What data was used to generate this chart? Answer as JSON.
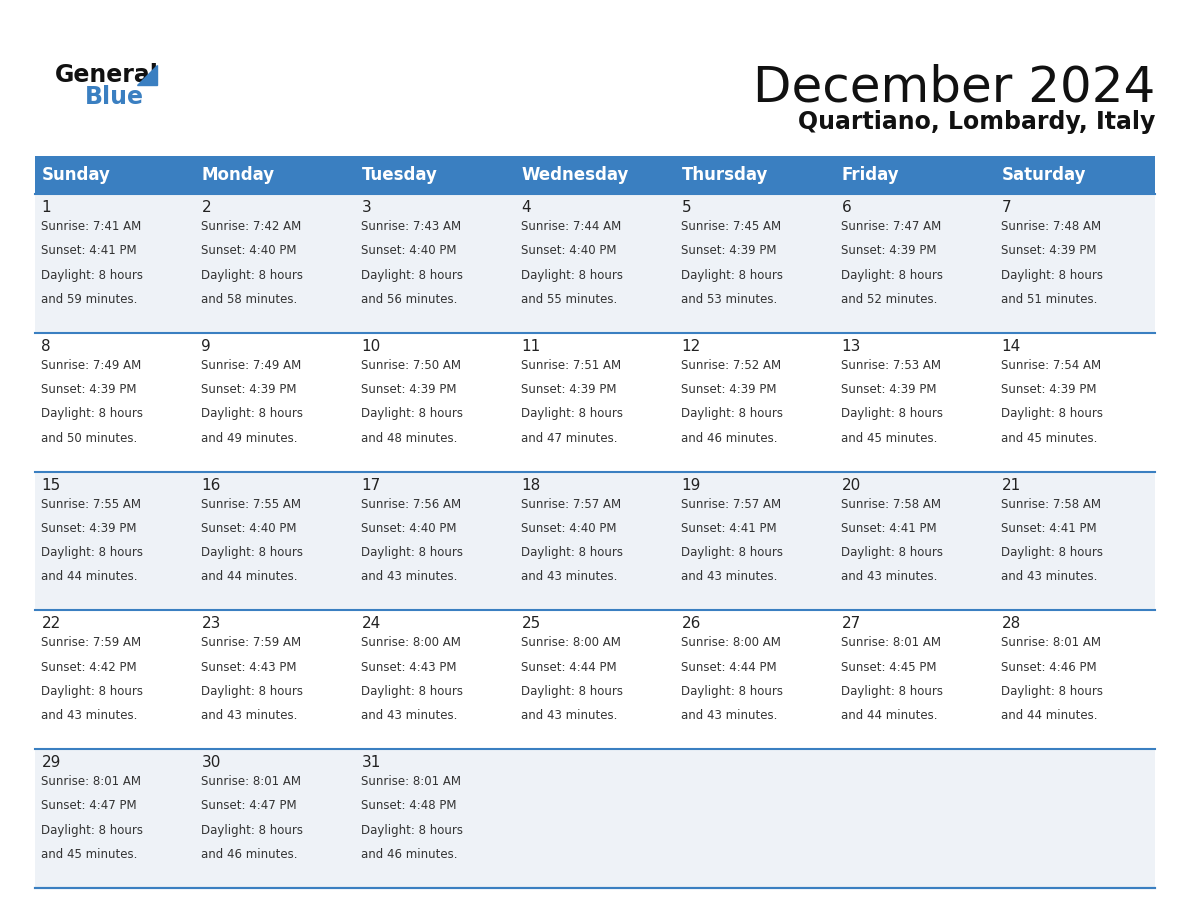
{
  "title": "December 2024",
  "subtitle": "Quartiano, Lombardy, Italy",
  "days_of_week": [
    "Sunday",
    "Monday",
    "Tuesday",
    "Wednesday",
    "Thursday",
    "Friday",
    "Saturday"
  ],
  "header_bg_color": "#3a7fc1",
  "header_text_color": "#ffffff",
  "row_bg_even": "#eef2f7",
  "row_bg_odd": "#ffffff",
  "divider_color": "#3a7fc1",
  "cell_text_color": "#333333",
  "day_num_color": "#222222",
  "title_color": "#111111",
  "subtitle_color": "#111111",
  "logo_text_color": "#111111",
  "logo_blue_color": "#3a7fc1",
  "calendar_data": [
    [
      {
        "day": 1,
        "sunrise": "7:41 AM",
        "sunset": "4:41 PM",
        "daylight_hours": 8,
        "daylight_minutes": 59
      },
      {
        "day": 2,
        "sunrise": "7:42 AM",
        "sunset": "4:40 PM",
        "daylight_hours": 8,
        "daylight_minutes": 58
      },
      {
        "day": 3,
        "sunrise": "7:43 AM",
        "sunset": "4:40 PM",
        "daylight_hours": 8,
        "daylight_minutes": 56
      },
      {
        "day": 4,
        "sunrise": "7:44 AM",
        "sunset": "4:40 PM",
        "daylight_hours": 8,
        "daylight_minutes": 55
      },
      {
        "day": 5,
        "sunrise": "7:45 AM",
        "sunset": "4:39 PM",
        "daylight_hours": 8,
        "daylight_minutes": 53
      },
      {
        "day": 6,
        "sunrise": "7:47 AM",
        "sunset": "4:39 PM",
        "daylight_hours": 8,
        "daylight_minutes": 52
      },
      {
        "day": 7,
        "sunrise": "7:48 AM",
        "sunset": "4:39 PM",
        "daylight_hours": 8,
        "daylight_minutes": 51
      }
    ],
    [
      {
        "day": 8,
        "sunrise": "7:49 AM",
        "sunset": "4:39 PM",
        "daylight_hours": 8,
        "daylight_minutes": 50
      },
      {
        "day": 9,
        "sunrise": "7:49 AM",
        "sunset": "4:39 PM",
        "daylight_hours": 8,
        "daylight_minutes": 49
      },
      {
        "day": 10,
        "sunrise": "7:50 AM",
        "sunset": "4:39 PM",
        "daylight_hours": 8,
        "daylight_minutes": 48
      },
      {
        "day": 11,
        "sunrise": "7:51 AM",
        "sunset": "4:39 PM",
        "daylight_hours": 8,
        "daylight_minutes": 47
      },
      {
        "day": 12,
        "sunrise": "7:52 AM",
        "sunset": "4:39 PM",
        "daylight_hours": 8,
        "daylight_minutes": 46
      },
      {
        "day": 13,
        "sunrise": "7:53 AM",
        "sunset": "4:39 PM",
        "daylight_hours": 8,
        "daylight_minutes": 45
      },
      {
        "day": 14,
        "sunrise": "7:54 AM",
        "sunset": "4:39 PM",
        "daylight_hours": 8,
        "daylight_minutes": 45
      }
    ],
    [
      {
        "day": 15,
        "sunrise": "7:55 AM",
        "sunset": "4:39 PM",
        "daylight_hours": 8,
        "daylight_minutes": 44
      },
      {
        "day": 16,
        "sunrise": "7:55 AM",
        "sunset": "4:40 PM",
        "daylight_hours": 8,
        "daylight_minutes": 44
      },
      {
        "day": 17,
        "sunrise": "7:56 AM",
        "sunset": "4:40 PM",
        "daylight_hours": 8,
        "daylight_minutes": 43
      },
      {
        "day": 18,
        "sunrise": "7:57 AM",
        "sunset": "4:40 PM",
        "daylight_hours": 8,
        "daylight_minutes": 43
      },
      {
        "day": 19,
        "sunrise": "7:57 AM",
        "sunset": "4:41 PM",
        "daylight_hours": 8,
        "daylight_minutes": 43
      },
      {
        "day": 20,
        "sunrise": "7:58 AM",
        "sunset": "4:41 PM",
        "daylight_hours": 8,
        "daylight_minutes": 43
      },
      {
        "day": 21,
        "sunrise": "7:58 AM",
        "sunset": "4:41 PM",
        "daylight_hours": 8,
        "daylight_minutes": 43
      }
    ],
    [
      {
        "day": 22,
        "sunrise": "7:59 AM",
        "sunset": "4:42 PM",
        "daylight_hours": 8,
        "daylight_minutes": 43
      },
      {
        "day": 23,
        "sunrise": "7:59 AM",
        "sunset": "4:43 PM",
        "daylight_hours": 8,
        "daylight_minutes": 43
      },
      {
        "day": 24,
        "sunrise": "8:00 AM",
        "sunset": "4:43 PM",
        "daylight_hours": 8,
        "daylight_minutes": 43
      },
      {
        "day": 25,
        "sunrise": "8:00 AM",
        "sunset": "4:44 PM",
        "daylight_hours": 8,
        "daylight_minutes": 43
      },
      {
        "day": 26,
        "sunrise": "8:00 AM",
        "sunset": "4:44 PM",
        "daylight_hours": 8,
        "daylight_minutes": 43
      },
      {
        "day": 27,
        "sunrise": "8:01 AM",
        "sunset": "4:45 PM",
        "daylight_hours": 8,
        "daylight_minutes": 44
      },
      {
        "day": 28,
        "sunrise": "8:01 AM",
        "sunset": "4:46 PM",
        "daylight_hours": 8,
        "daylight_minutes": 44
      }
    ],
    [
      {
        "day": 29,
        "sunrise": "8:01 AM",
        "sunset": "4:47 PM",
        "daylight_hours": 8,
        "daylight_minutes": 45
      },
      {
        "day": 30,
        "sunrise": "8:01 AM",
        "sunset": "4:47 PM",
        "daylight_hours": 8,
        "daylight_minutes": 46
      },
      {
        "day": 31,
        "sunrise": "8:01 AM",
        "sunset": "4:48 PM",
        "daylight_hours": 8,
        "daylight_minutes": 46
      },
      null,
      null,
      null,
      null
    ]
  ]
}
